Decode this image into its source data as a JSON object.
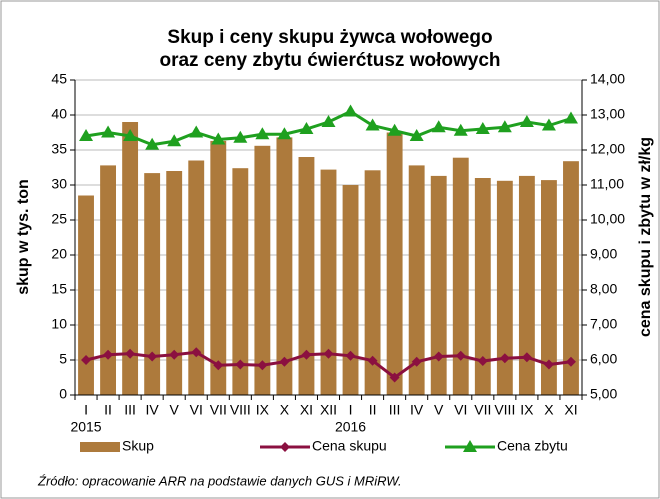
{
  "chart_data": {
    "type": "bar_line",
    "title": [
      "Skup i ceny skupu żywca wołowego",
      "oraz ceny zbytu ćwierćtusz wołowych"
    ],
    "y_label": "skup w tys. ton",
    "y2_label": "cena skupu i zbytu w zł/kg",
    "source": "Źródło: opracowanie ARR na podstawie danych GUS i MRiRW.",
    "categories": [
      "I",
      "II",
      "III",
      "IV",
      "V",
      "VI",
      "VII",
      "VIII",
      "IX",
      "X",
      "XI",
      "XII",
      "I",
      "II",
      "III",
      "IV",
      "V",
      "VI",
      "VII",
      "VIII",
      "IX",
      "X",
      "XI"
    ],
    "x_groups": [
      {
        "label": "2015",
        "start": 0
      },
      {
        "label": "2016",
        "start": 12
      }
    ],
    "ylim": [
      0,
      45
    ],
    "yticks": [
      0,
      5,
      10,
      15,
      20,
      25,
      30,
      35,
      40,
      45
    ],
    "y2lim": [
      5,
      14
    ],
    "y2ticks": [
      {
        "value": 5,
        "label": "5,00"
      },
      {
        "value": 6,
        "label": "6,00"
      },
      {
        "value": 7,
        "label": "7,00"
      },
      {
        "value": 8,
        "label": "8,00"
      },
      {
        "value": 9,
        "label": "9,00"
      },
      {
        "value": 10,
        "label": "10,00"
      },
      {
        "value": 11,
        "label": "11,00"
      },
      {
        "value": 12,
        "label": "12,00"
      },
      {
        "value": 13,
        "label": "13,00"
      },
      {
        "value": 14,
        "label": "14,00"
      }
    ],
    "grid": true,
    "series": [
      {
        "name": "Skup",
        "type": "bar",
        "color": "#ad7a3c",
        "values": [
          28.5,
          32.8,
          39,
          31.7,
          32,
          33.5,
          36.3,
          32.4,
          35.6,
          36.8,
          34,
          32.2,
          30,
          32.1,
          37.5,
          32.8,
          31.3,
          33.9,
          31,
          30.6,
          31.3,
          30.7,
          33.4
        ]
      },
      {
        "name": "Cena skupu",
        "type": "line",
        "axis": "y2",
        "color": "#8b1040",
        "marker": "diamond",
        "values": [
          6.0,
          6.15,
          6.18,
          6.1,
          6.15,
          6.22,
          5.85,
          5.87,
          5.85,
          5.95,
          6.15,
          6.18,
          6.12,
          5.98,
          5.5,
          5.95,
          6.1,
          6.12,
          5.97,
          6.05,
          6.08,
          5.87,
          5.95
        ]
      },
      {
        "name": "Cena zbytu",
        "type": "line",
        "axis": "y2",
        "color": "#1fa01f",
        "marker": "triangle",
        "values": [
          12.4,
          12.5,
          12.4,
          12.15,
          12.25,
          12.5,
          12.3,
          12.35,
          12.45,
          12.45,
          12.6,
          12.8,
          13.1,
          12.7,
          12.55,
          12.4,
          12.65,
          12.55,
          12.6,
          12.65,
          12.8,
          12.7,
          12.9
        ]
      }
    ]
  }
}
